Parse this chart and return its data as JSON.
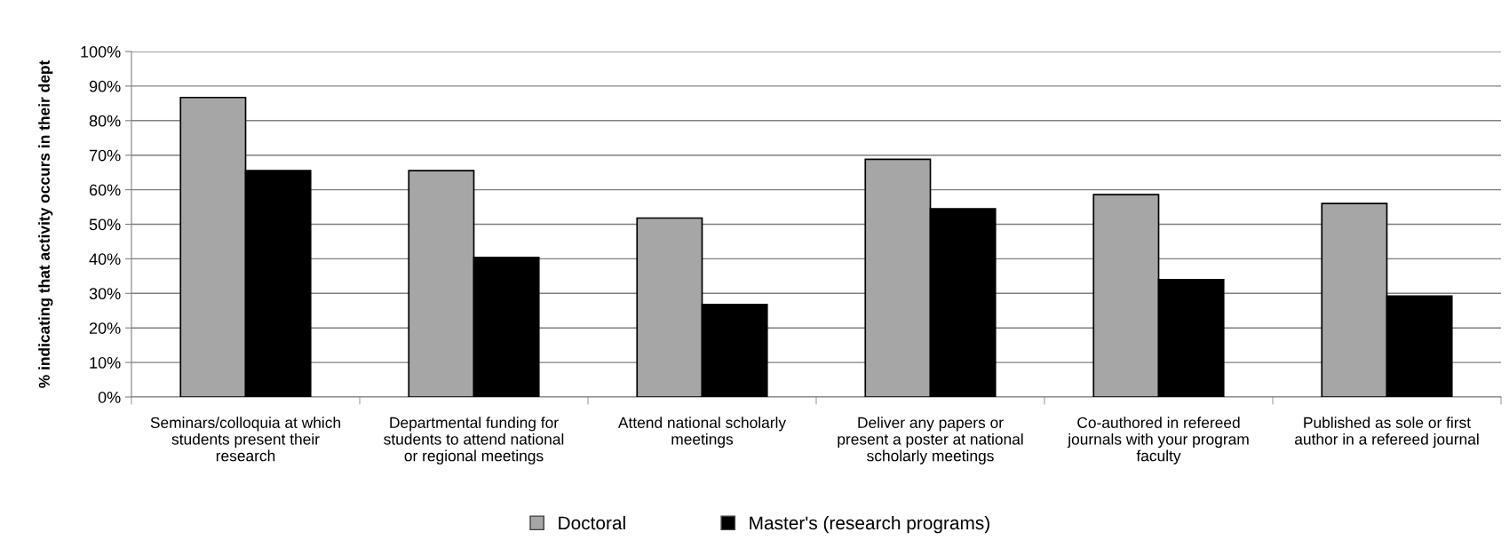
{
  "chart_data": {
    "type": "bar",
    "ylabel": "% indicating that activity occurs in their dept",
    "categories": [
      "Seminars/colloquia at which\nstudents present their\nresearch",
      "Departmental funding for\nstudents to attend national\nor regional meetings",
      "Attend national scholarly\nmeetings",
      "Deliver any papers or\npresent a poster at national\nscholarly meetings",
      "Co-authored in refereed\njournals with your program\nfaculty",
      "Published as sole or first\nauthor in a refereed journal"
    ],
    "series": [
      {
        "name": "Doctoral",
        "color": "#a6a6a6",
        "values": [
          86.7,
          65.5,
          51.8,
          68.8,
          58.6,
          56.0
        ]
      },
      {
        "name": "Master's (research programs)",
        "color": "#000000",
        "values": [
          65.5,
          40.4,
          26.8,
          54.5,
          34.0,
          29.2
        ]
      }
    ],
    "ylim": [
      0,
      100
    ],
    "yticks": [
      {
        "value": 0,
        "label": "0%"
      },
      {
        "value": 10,
        "label": "10%"
      },
      {
        "value": 20,
        "label": "20%"
      },
      {
        "value": 30,
        "label": "30%"
      },
      {
        "value": 40,
        "label": "40%"
      },
      {
        "value": 50,
        "label": "50%"
      },
      {
        "value": 60,
        "label": "60%"
      },
      {
        "value": 70,
        "label": "70%"
      },
      {
        "value": 80,
        "label": "80%"
      },
      {
        "value": 90,
        "label": "90%"
      },
      {
        "value": 100,
        "label": "100%"
      }
    ],
    "grid": "y",
    "legend": "bottom"
  }
}
